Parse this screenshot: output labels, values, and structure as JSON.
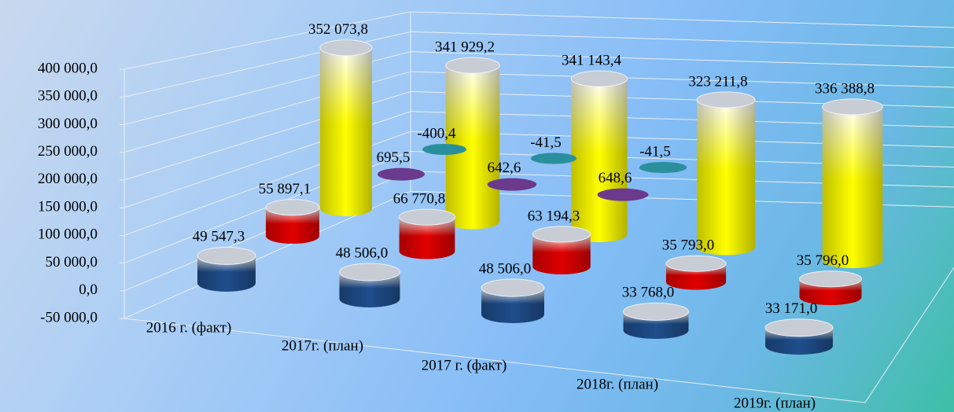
{
  "chart_data": {
    "type": "cylinder3d",
    "categories": [
      "2016 г. (факт)",
      "2017г. (план)",
      "2017 г. (факт)",
      "2018г. (план)",
      "2019г. (план)"
    ],
    "series": [
      {
        "color": "#1f4e8c",
        "values": [
          49547.3,
          48506.0,
          48506.0,
          33768.0,
          33171.0
        ],
        "value_labels": [
          "49 547,3",
          "48 506,0",
          "48 506,0",
          "33 768,0",
          "33 171,0"
        ]
      },
      {
        "color": "#e00000",
        "values": [
          55897.1,
          66770.8,
          63194.3,
          35793.0,
          35796.0
        ],
        "value_labels": [
          "55 897,1",
          "66 770,8",
          "63 194,3",
          "35 793,0",
          "35 796,0"
        ]
      },
      {
        "color": "#6b3a8c",
        "values": [
          695.5,
          642.6,
          648.6,
          null,
          null
        ],
        "value_labels": [
          "695,5",
          "642,6",
          "648,6",
          null,
          null
        ]
      },
      {
        "color": "#2a8f9c",
        "values": [
          -400.4,
          -41.5,
          -41.5,
          null,
          null
        ],
        "value_labels": [
          "-400,4",
          "-41,5",
          "-41,5",
          null,
          null
        ]
      },
      {
        "color": "#ffff00",
        "values": [
          352073.8,
          341929.2,
          341143.4,
          323211.8,
          336388.8
        ],
        "value_labels": [
          "352 073,8",
          "341 929,2",
          "341 143,4",
          "323 211,8",
          "336 388,8"
        ]
      }
    ],
    "ylim": [
      -50000,
      400000
    ],
    "yticks": [
      {
        "value": -50000,
        "label": "-50 000,0"
      },
      {
        "value": 0,
        "label": "0,0"
      },
      {
        "value": 50000,
        "label": "50 000,0"
      },
      {
        "value": 100000,
        "label": "100 000,0"
      },
      {
        "value": 150000,
        "label": "150 000,0"
      },
      {
        "value": 200000,
        "label": "200 000,0"
      },
      {
        "value": 250000,
        "label": "250 000,0"
      },
      {
        "value": 300000,
        "label": "300 000,0"
      },
      {
        "value": 350000,
        "label": "350 000,0"
      },
      {
        "value": 400000,
        "label": "400 000,0"
      }
    ],
    "grid": true
  }
}
